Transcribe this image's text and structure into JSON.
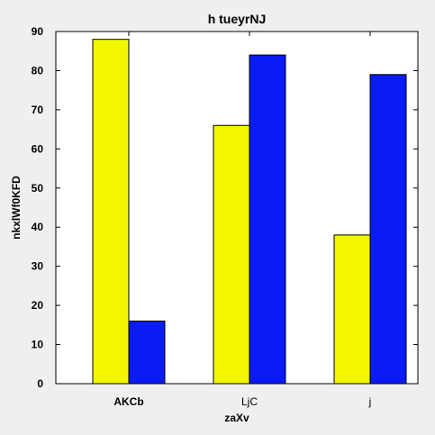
{
  "chart_data": {
    "type": "bar",
    "title": "h  tueyrNJ",
    "xlabel": "zaXv",
    "ylabel": "nkxlWf0KFD",
    "categories": [
      "AKCb",
      "LjC",
      "j"
    ],
    "category_bold": [
      true,
      false,
      false
    ],
    "series": [
      {
        "values": [
          88,
          66,
          38
        ],
        "color": "#f2f700"
      },
      {
        "values": [
          16,
          84,
          79
        ],
        "color": "#0a1cf5"
      }
    ],
    "ylim": [
      0,
      90
    ],
    "yticks": [
      0,
      10,
      20,
      30,
      40,
      50,
      60,
      70,
      80,
      90
    ],
    "grid": false,
    "legend": "none"
  }
}
